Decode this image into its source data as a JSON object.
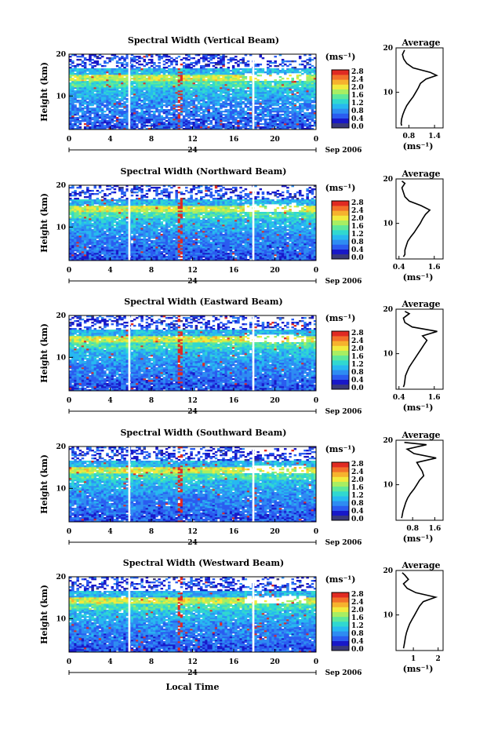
{
  "figure": {
    "bottom_label": "Local Time",
    "colors": {
      "scale": [
        "#3a3a7a",
        "#1818c8",
        "#2a5cf0",
        "#2e8cf2",
        "#27b9f0",
        "#30d8d0",
        "#5fe89a",
        "#a8ee62",
        "#f2ea3c",
        "#f6b22e",
        "#f2702a",
        "#e02a22"
      ],
      "accent": "#e02a22"
    }
  },
  "chart_data": [
    {
      "type": "heatmap",
      "title": "Spectral Width (Vertical Beam)",
      "ylabel": "Height (km)",
      "yticks": [
        "20",
        "10"
      ],
      "xticks": [
        "0",
        "4",
        "8",
        "12",
        "16",
        "20",
        "0"
      ],
      "date_day": "24",
      "date_label": "Sep 2006",
      "x_range_hours": [
        0,
        24
      ],
      "y_range_km": [
        2,
        20
      ],
      "colorbar": {
        "unit": "(ms⁻¹)",
        "ticks": [
          "2.8",
          "2.4",
          "2.0",
          "1.6",
          "1.2",
          "0.8",
          "0.4",
          "0.0"
        ],
        "range": [
          0,
          2.8
        ]
      },
      "profile": {
        "title": "Average",
        "xlabel": "(ms⁻¹)",
        "xticks": [
          "0.8",
          "1.4"
        ],
        "xlim": [
          0.5,
          1.6
        ],
        "yticks": [
          "20",
          "10"
        ],
        "heights": [
          2.5,
          3,
          4,
          5,
          6,
          7,
          8,
          9,
          10,
          11,
          12,
          13,
          13.8,
          14.5,
          15.5,
          16.5,
          17.5,
          18.5,
          19.5
        ],
        "values": [
          0.63,
          0.62,
          0.63,
          0.66,
          0.7,
          0.75,
          0.82,
          0.9,
          0.96,
          1.02,
          1.07,
          1.2,
          1.45,
          1.3,
          0.9,
          0.75,
          0.68,
          0.65,
          0.7
        ]
      }
    },
    {
      "type": "heatmap",
      "title": "Spectral Width (Northward Beam)",
      "ylabel": "Height (km)",
      "yticks": [
        "20",
        "10"
      ],
      "xticks": [
        "0",
        "4",
        "8",
        "12",
        "16",
        "20",
        "0"
      ],
      "date_day": "24",
      "date_label": "Sep 2006",
      "x_range_hours": [
        0,
        24
      ],
      "y_range_km": [
        2,
        20
      ],
      "colorbar": {
        "unit": "(ms⁻¹)",
        "ticks": [
          "2.8",
          "2.4",
          "2.0",
          "1.6",
          "1.2",
          "0.8",
          "0.4",
          "0.0"
        ],
        "range": [
          0,
          2.8
        ]
      },
      "profile": {
        "title": "Average",
        "xlabel": "(ms⁻¹)",
        "xticks": [
          "0.4",
          "1.6"
        ],
        "xlim": [
          0.3,
          1.9
        ],
        "yticks": [
          "20",
          "10"
        ],
        "heights": [
          2.5,
          3,
          4,
          5,
          6,
          7,
          8,
          9,
          10,
          11,
          12,
          13,
          14,
          15,
          16,
          17,
          18,
          19,
          19.5
        ],
        "values": [
          0.55,
          0.6,
          0.6,
          0.65,
          0.7,
          0.8,
          0.92,
          1.02,
          1.12,
          1.2,
          1.3,
          1.45,
          1.15,
          0.75,
          0.6,
          0.55,
          0.5,
          0.6,
          0.5
        ]
      }
    },
    {
      "type": "heatmap",
      "title": "Spectral Width (Eastward Beam)",
      "ylabel": "Height (km)",
      "yticks": [
        "20",
        "10"
      ],
      "xticks": [
        "0",
        "4",
        "8",
        "12",
        "16",
        "20",
        "0"
      ],
      "date_day": "24",
      "date_label": "Sep 2006",
      "x_range_hours": [
        0,
        24
      ],
      "y_range_km": [
        2,
        20
      ],
      "colorbar": {
        "unit": "(ms⁻¹)",
        "ticks": [
          "2.8",
          "2.4",
          "2.0",
          "1.6",
          "1.2",
          "0.8",
          "0.4",
          "0.0"
        ],
        "range": [
          0,
          2.8
        ]
      },
      "profile": {
        "title": "Average",
        "xlabel": "(ms⁻¹)",
        "xticks": [
          "0.4",
          "1.6"
        ],
        "xlim": [
          0.3,
          1.9
        ],
        "yticks": [
          "20",
          "10"
        ],
        "heights": [
          2.5,
          3,
          4,
          5,
          6,
          7,
          8,
          9,
          10,
          11,
          12,
          13,
          14,
          15,
          16,
          17,
          18,
          19,
          19.5
        ],
        "values": [
          0.55,
          0.58,
          0.6,
          0.62,
          0.68,
          0.75,
          0.85,
          0.95,
          1.05,
          1.15,
          1.25,
          1.35,
          1.2,
          1.7,
          0.85,
          0.6,
          0.55,
          0.75,
          0.6
        ]
      }
    },
    {
      "type": "heatmap",
      "title": "Spectral Width (Southward Beam)",
      "ylabel": "Height (km)",
      "yticks": [
        "20",
        "10"
      ],
      "xticks": [
        "0",
        "4",
        "8",
        "12",
        "16",
        "20",
        "0"
      ],
      "date_day": "24",
      "date_label": "Sep 2006",
      "x_range_hours": [
        0,
        24
      ],
      "y_range_km": [
        2,
        20
      ],
      "colorbar": {
        "unit": "(ms⁻¹)",
        "ticks": [
          "2.8",
          "2.4",
          "2.0",
          "1.6",
          "1.2",
          "0.8",
          "0.4",
          "0.0"
        ],
        "range": [
          0,
          2.8
        ]
      },
      "profile": {
        "title": "Average",
        "xlabel": "(ms⁻¹)",
        "xticks": [
          "0.8",
          "1.6"
        ],
        "xlim": [
          0.2,
          1.9
        ],
        "yticks": [
          "20",
          "10"
        ],
        "heights": [
          2.5,
          3,
          4,
          5,
          6,
          7,
          8,
          9,
          10,
          11,
          12,
          13,
          14,
          15,
          16,
          17,
          18,
          19,
          19.5
        ],
        "values": [
          0.4,
          0.42,
          0.45,
          0.5,
          0.55,
          0.62,
          0.72,
          0.85,
          0.95,
          1.05,
          1.2,
          1.15,
          1.05,
          0.95,
          1.65,
          0.85,
          0.6,
          1.3,
          0.5
        ]
      }
    },
    {
      "type": "heatmap",
      "title": "Spectral Width (Westward Beam)",
      "ylabel": "Height (km)",
      "yticks": [
        "20",
        "10"
      ],
      "xticks": [
        "0",
        "4",
        "8",
        "12",
        "16",
        "20",
        "0"
      ],
      "date_day": "24",
      "date_label": "Sep 2006",
      "x_range_hours": [
        0,
        24
      ],
      "y_range_km": [
        2,
        20
      ],
      "colorbar": {
        "unit": "(ms⁻¹)",
        "ticks": [
          "2.8",
          "2.4",
          "2.0",
          "1.6",
          "1.2",
          "0.8",
          "0.4",
          "0.0"
        ],
        "range": [
          0,
          2.8
        ]
      },
      "profile": {
        "title": "Average",
        "xlabel": "(ms⁻¹)",
        "xticks": [
          "1",
          "2"
        ],
        "xlim": [
          0.3,
          2.2
        ],
        "yticks": [
          "20",
          "10"
        ],
        "heights": [
          2.5,
          3,
          4,
          5,
          6,
          7,
          8,
          9,
          10,
          11,
          12,
          13,
          14,
          15,
          16,
          17,
          18,
          19,
          19.5
        ],
        "values": [
          0.6,
          0.62,
          0.65,
          0.68,
          0.72,
          0.78,
          0.85,
          0.95,
          1.05,
          1.15,
          1.25,
          1.4,
          1.9,
          1.1,
          0.75,
          0.6,
          0.8,
          0.65,
          0.55
        ]
      }
    }
  ]
}
